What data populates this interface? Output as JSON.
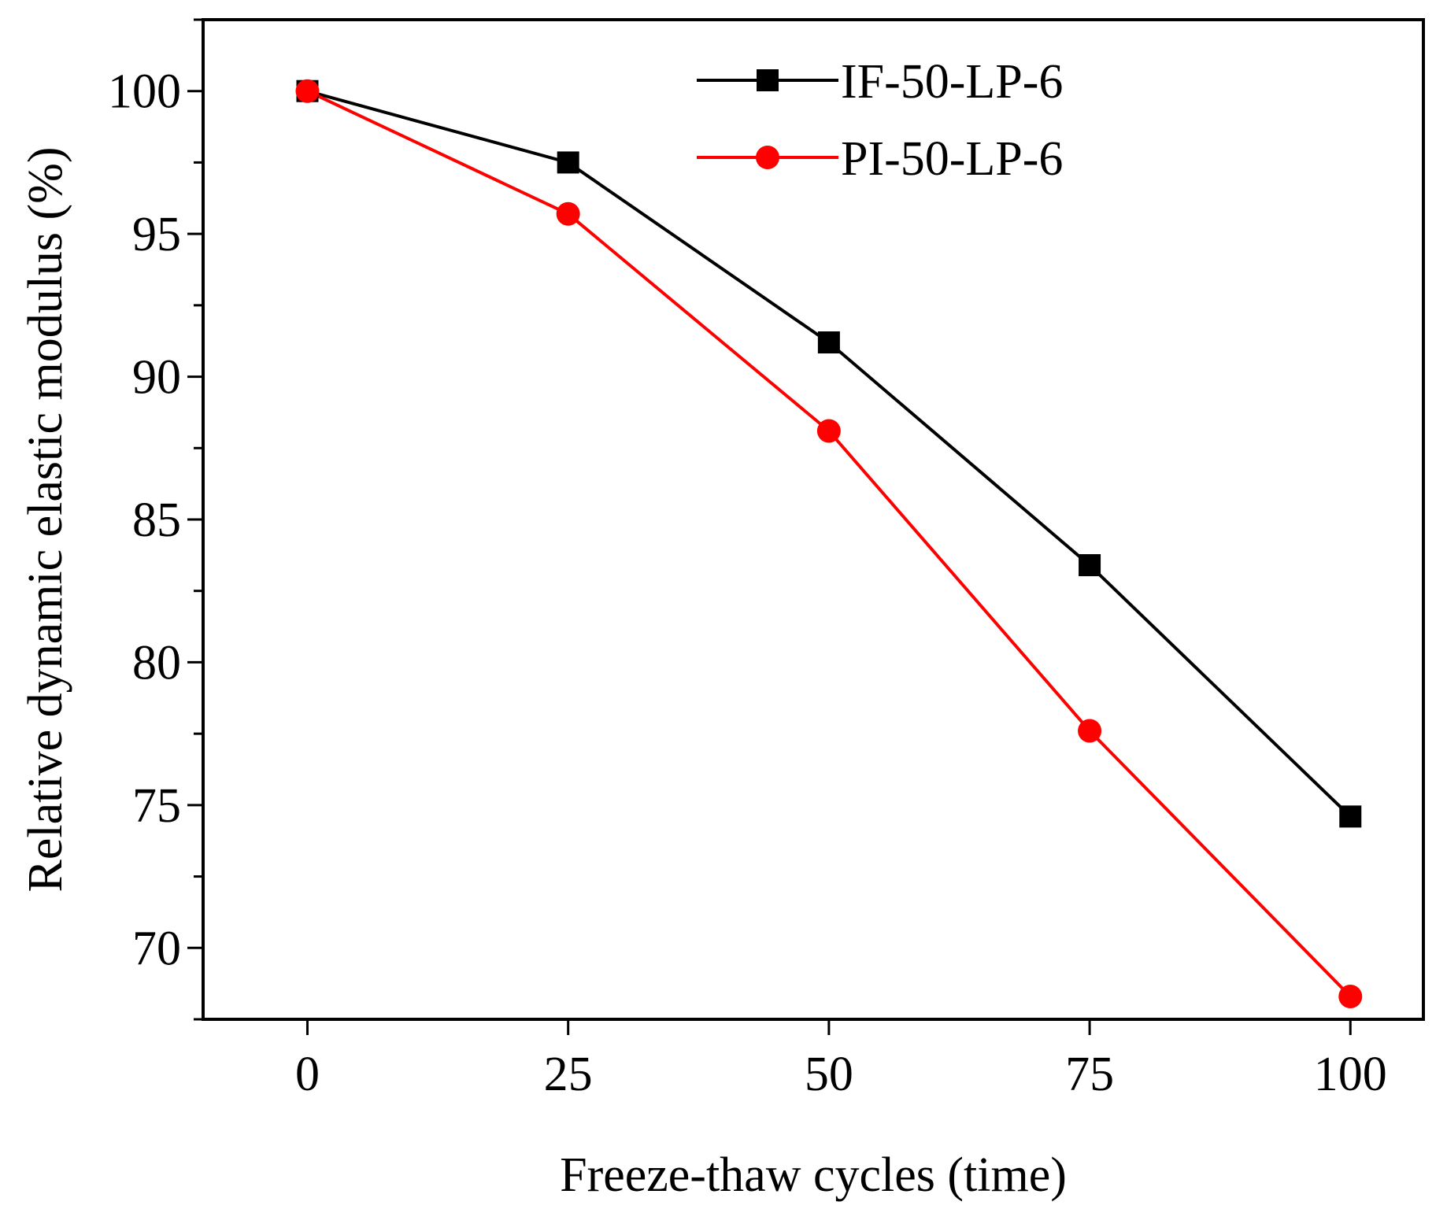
{
  "chart_data": {
    "type": "line",
    "title": "",
    "xlabel": "Freeze-thaw cycles (time)",
    "ylabel": "Relative dynamic elastic modulus (%)",
    "xlim": [
      -10,
      107
    ],
    "ylim": [
      67.5,
      102.5
    ],
    "xticks": [
      0,
      25,
      50,
      75,
      100
    ],
    "xtick_labels": [
      "0",
      "25",
      "50",
      "75",
      "100"
    ],
    "yticks": [
      70,
      75,
      80,
      85,
      90,
      95,
      100
    ],
    "ytick_labels": [
      "70",
      "75",
      "80",
      "85",
      "90",
      "95",
      "100"
    ],
    "y_minor_step": 2.5,
    "grid": false,
    "legend_position": "top-center",
    "x": [
      0,
      25,
      50,
      75,
      100
    ],
    "series": [
      {
        "name": "IF-50-LP-6",
        "color": "#000000",
        "marker": "square",
        "values": [
          100.0,
          97.5,
          91.2,
          83.4,
          74.6
        ]
      },
      {
        "name": "PI-50-LP-6",
        "color": "#ff0000",
        "marker": "circle",
        "values": [
          100.0,
          95.7,
          88.1,
          77.6,
          68.3
        ]
      }
    ]
  }
}
